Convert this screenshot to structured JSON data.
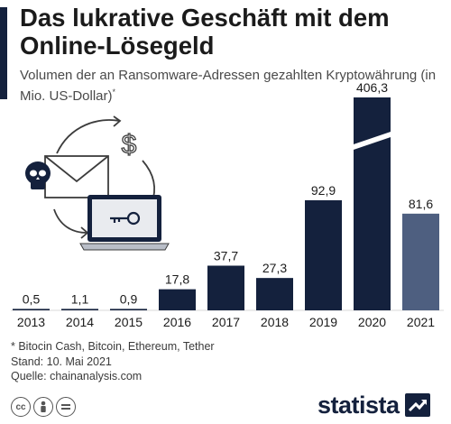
{
  "header": {
    "title": "Das lukrative Geschäft mit dem Online-Lösegeld",
    "subtitle": "Volumen der an Ransomware-Adressen gezahlten Kryptowährung (in Mio. US-Dollar)",
    "subtitle_marker": "*"
  },
  "chart_data": {
    "type": "bar",
    "categories": [
      "2013",
      "2014",
      "2015",
      "2016",
      "2017",
      "2018",
      "2019",
      "2020",
      "2021"
    ],
    "values": [
      0.5,
      1.1,
      0.9,
      17.8,
      37.7,
      27.3,
      92.9,
      406.3,
      81.6
    ],
    "value_labels": [
      "0,5",
      "1,1",
      "0,9",
      "17,8",
      "37,7",
      "27,3",
      "92,9",
      "406,3",
      "81,6"
    ],
    "axis_break": {
      "category": "2020",
      "visible_max": 130
    },
    "highlight": {
      "category": "2021",
      "color": "#4e5f80"
    },
    "bar_color": "#14213d",
    "ylim": [
      0,
      130
    ],
    "grid": false,
    "legend": "none"
  },
  "illustration": {
    "icons": [
      "skull-icon",
      "envelope-icon",
      "dollar-icon",
      "laptop-icon",
      "key-icon",
      "cycle-arrows-icon"
    ]
  },
  "footer": {
    "note": "* Bitocin Cash, Bitcoin, Ethereum, Tether",
    "date": "Stand: 10. Mai 2021",
    "source": "Quelle: chainanalysis.com",
    "license_icons": [
      "cc-icon",
      "person-icon",
      "equals-icon"
    ],
    "brand": "statista",
    "brand_color": "#14213d"
  }
}
